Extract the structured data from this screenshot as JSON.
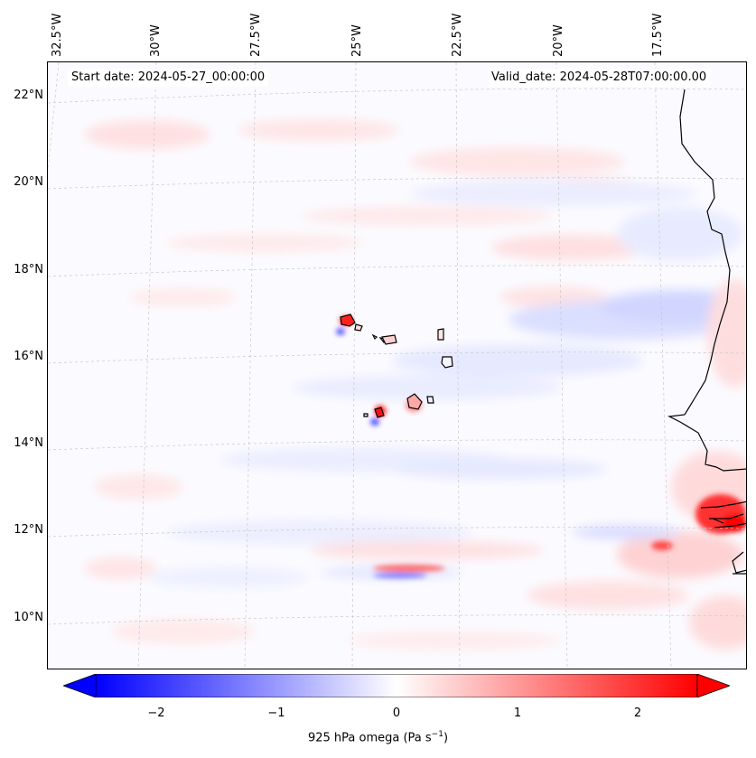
{
  "header": {
    "start_date": "Start date: 2024-05-27_00:00:00",
    "valid_date": "Valid_date: 2024-05-28T07:00:00.00"
  },
  "map": {
    "projection": "lambert-conformal",
    "lon_ticks": [
      "32.5°W",
      "30°W",
      "27.5°W",
      "25°W",
      "22.5°W",
      "20°W",
      "17.5°W"
    ],
    "lat_ticks": [
      "22°N",
      "20°N",
      "18°N",
      "16°N",
      "14°N",
      "12°N",
      "10°N"
    ],
    "field": "925 hPa omega",
    "coastline_color": "#000000",
    "gridline_color": "#c8c8c8"
  },
  "colorbar": {
    "label": "925 hPa omega (Pa s",
    "label_unit_exp": "−1",
    "label_close": ")",
    "ticks": [
      "−2",
      "−1",
      "0",
      "1",
      "2"
    ],
    "tick_values": [
      -2,
      -1,
      0,
      1,
      2
    ],
    "range": [
      -2.5,
      2.5
    ],
    "colormap": "bwr",
    "low_color": "#0000ff",
    "mid_color": "#ffffff",
    "high_color": "#ff0000",
    "extend": "both"
  }
}
